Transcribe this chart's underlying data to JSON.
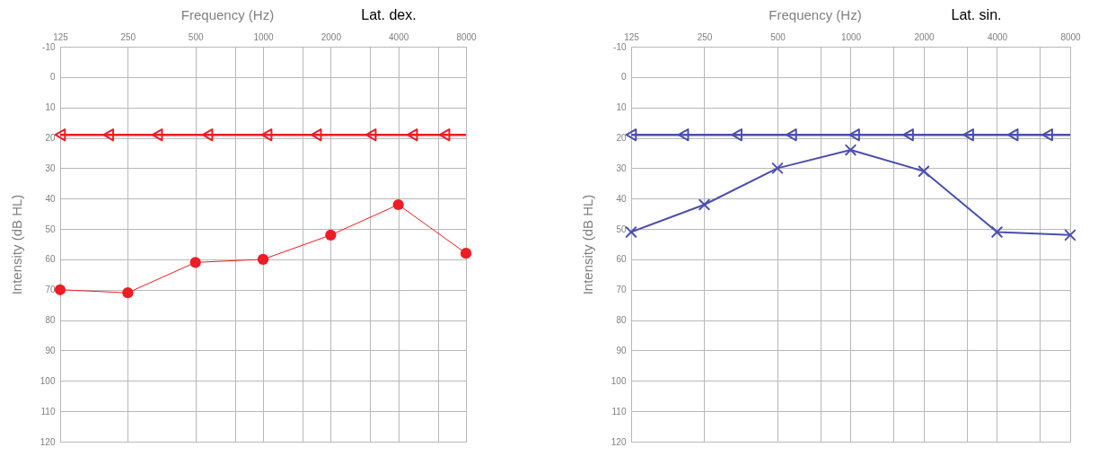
{
  "chart_data": [
    {
      "type": "line",
      "title": "Lat. dex.",
      "xlabel": "Frequency (Hz)",
      "ylabel": "Intensity (dB HL)",
      "log": "x",
      "grid": true,
      "xlim": [
        125,
        8000
      ],
      "xticks": [
        125,
        250,
        500,
        {
          "value": 750,
          "label": null
        },
        1000,
        {
          "value": 1500,
          "label": null
        },
        2000,
        {
          "value": 3000,
          "label": null
        },
        4000,
        {
          "value": 6000,
          "label": null
        },
        8000
      ],
      "ylim": [
        120,
        -10
      ],
      "yticks": [
        -10,
        0,
        10,
        20,
        30,
        40,
        50,
        60,
        70,
        80,
        90,
        100,
        110,
        120
      ],
      "ref_lines": [
        {
          "axis": "y",
          "value": 19,
          "color": "#ee1c24"
        }
      ],
      "series": [
        {
          "type": "line",
          "color": "#ee1c24",
          "marker": "circle",
          "x": [
            125,
            250,
            500,
            1000,
            2000,
            4000,
            8000
          ],
          "values": [
            70,
            71,
            61,
            60,
            52,
            42,
            58
          ]
        },
        {
          "type": "scatter",
          "color": "#ee1c24",
          "marker": "triangle",
          "x": [
            125,
            205,
            338,
            566,
            1038,
            1724,
            3020,
            4613,
            6425
          ],
          "values": [
            19,
            19,
            19,
            19,
            19,
            19,
            19,
            19,
            19
          ]
        }
      ]
    },
    {
      "type": "line",
      "title": "Lat. sin.",
      "xlabel": "Frequency (Hz)",
      "ylabel": "Intensity (dB HL)",
      "log": "x",
      "grid": true,
      "xlim": [
        125,
        8000
      ],
      "xticks": [
        125,
        250,
        500,
        {
          "value": 750,
          "label": null
        },
        1000,
        {
          "value": 1500,
          "label": null
        },
        2000,
        {
          "value": 3000,
          "label": null
        },
        4000,
        {
          "value": 6000,
          "label": null
        },
        8000
      ],
      "ylim": [
        120,
        -10
      ],
      "yticks": [
        -10,
        0,
        10,
        20,
        30,
        40,
        50,
        60,
        70,
        80,
        90,
        100,
        110,
        120
      ],
      "ref_lines": [
        {
          "axis": "y",
          "value": 19,
          "color": "#4a4fae"
        }
      ],
      "series": [
        {
          "type": "line",
          "color": "#4a4fae",
          "marker": "cross",
          "x": [
            125,
            250,
            500,
            1000,
            2000,
            4000,
            8000
          ],
          "values": [
            51,
            42,
            30,
            24,
            31,
            51,
            52
          ]
        },
        {
          "type": "scatter",
          "color": "#4a4fae",
          "marker": "triangle",
          "x": [
            125,
            205,
            340,
            570,
            1035,
            1725,
            3050,
            4650,
            6450
          ],
          "values": [
            19,
            19,
            19,
            19,
            19,
            19,
            19,
            19,
            19
          ]
        }
      ]
    }
  ]
}
